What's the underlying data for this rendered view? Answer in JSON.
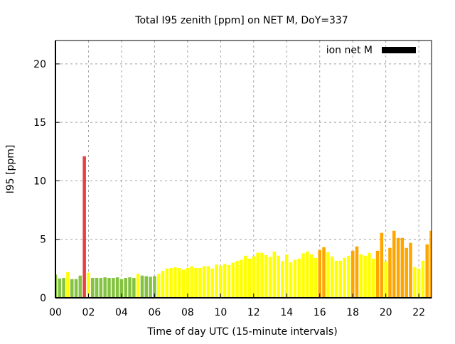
{
  "chart_data": {
    "type": "bar",
    "title": "Total I95 zenith [ppm] on NET M, DoY=337",
    "xlabel": "Time of day UTC (15-minute intervals)",
    "ylabel": "I95 [ppm]",
    "xlim": [
      0,
      22.77
    ],
    "ylim": [
      0,
      22
    ],
    "grid": true,
    "legend": {
      "label": "ion net M",
      "placement": "top-right",
      "color": "#000000"
    },
    "x_ticks": [
      0,
      2,
      4,
      6,
      8,
      10,
      12,
      14,
      16,
      18,
      20,
      22
    ],
    "x_tick_labels": [
      "00",
      "02",
      "04",
      "06",
      "08",
      "10",
      "12",
      "14",
      "16",
      "18",
      "20",
      "22"
    ],
    "y_ticks": [
      0,
      5,
      10,
      15,
      20
    ],
    "y_tick_labels": [
      "0",
      "5",
      "10",
      "15",
      "20"
    ],
    "bar_step_hours": 0.25,
    "color_thresholds": [
      {
        "below": 2.0,
        "color": "#84c341"
      },
      {
        "below": 4.0,
        "color": "#ffff00"
      },
      {
        "below": 10.0,
        "color": "#ffa500"
      },
      {
        "below": 1000,
        "color": "#e84040"
      }
    ],
    "values": [
      1.98,
      1.65,
      1.7,
      2.2,
      1.6,
      1.6,
      1.9,
      12.1,
      2.15,
      1.7,
      1.7,
      1.7,
      1.75,
      1.7,
      1.7,
      1.75,
      1.6,
      1.7,
      1.75,
      1.7,
      2.05,
      1.9,
      1.85,
      1.8,
      1.85,
      2.05,
      2.3,
      2.5,
      2.55,
      2.6,
      2.55,
      2.4,
      2.55,
      2.7,
      2.55,
      2.55,
      2.7,
      2.7,
      2.5,
      2.85,
      2.75,
      2.9,
      2.8,
      3.0,
      3.15,
      3.25,
      3.6,
      3.35,
      3.55,
      3.85,
      3.85,
      3.65,
      3.5,
      3.95,
      3.6,
      3.15,
      3.7,
      3.05,
      3.25,
      3.35,
      3.8,
      3.96,
      3.72,
      3.41,
      4.09,
      4.33,
      3.9,
      3.54,
      3.17,
      3.17,
      3.41,
      3.6,
      4.02,
      4.39,
      3.72,
      3.6,
      3.84,
      3.35,
      4.02,
      5.55,
      3.11,
      4.27,
      5.73,
      5.12,
      5.12,
      4.27,
      4.7,
      2.62,
      2.5,
      3.17,
      4.57,
      5.73
    ]
  }
}
